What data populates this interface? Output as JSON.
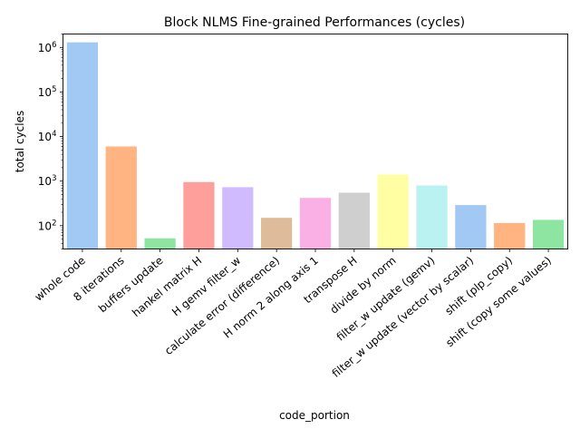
{
  "chart_data": {
    "type": "bar",
    "title": "Block NLMS Fine-grained Performances (cycles)",
    "xlabel": "code_portion",
    "ylabel": "total cycles",
    "yscale": "log",
    "ylim": [
      30,
      2000000
    ],
    "grid": false,
    "yticks": [
      {
        "value": 100,
        "base": "10",
        "exp": "2"
      },
      {
        "value": 1000,
        "base": "10",
        "exp": "3"
      },
      {
        "value": 10000,
        "base": "10",
        "exp": "4"
      },
      {
        "value": 100000,
        "base": "10",
        "exp": "5"
      },
      {
        "value": 1000000,
        "base": "10",
        "exp": "6"
      }
    ],
    "categories": [
      "whole code",
      "8 iterations",
      "buffers update",
      "hankel matrix H",
      "H gemv filter_w",
      "calculate error (difference)",
      "H norm 2 along axis 1",
      "transpose H",
      "divide by norm",
      "filter_w update (gemv)",
      "filter_w update (vector by scalar)",
      "shift (plp_copy)",
      "shift (copy some values)"
    ],
    "values": [
      1300000,
      6000,
      52,
      950,
      730,
      150,
      420,
      550,
      1400,
      800,
      290,
      115,
      135
    ],
    "colors": [
      "#a1c9f4",
      "#ffb482",
      "#8de5a1",
      "#ff9f9b",
      "#d0bbff",
      "#debb9b",
      "#fab0e4",
      "#cfcfcf",
      "#fffea3",
      "#b9f2f0",
      "#a1c9f4",
      "#ffb482",
      "#8de5a1"
    ]
  }
}
